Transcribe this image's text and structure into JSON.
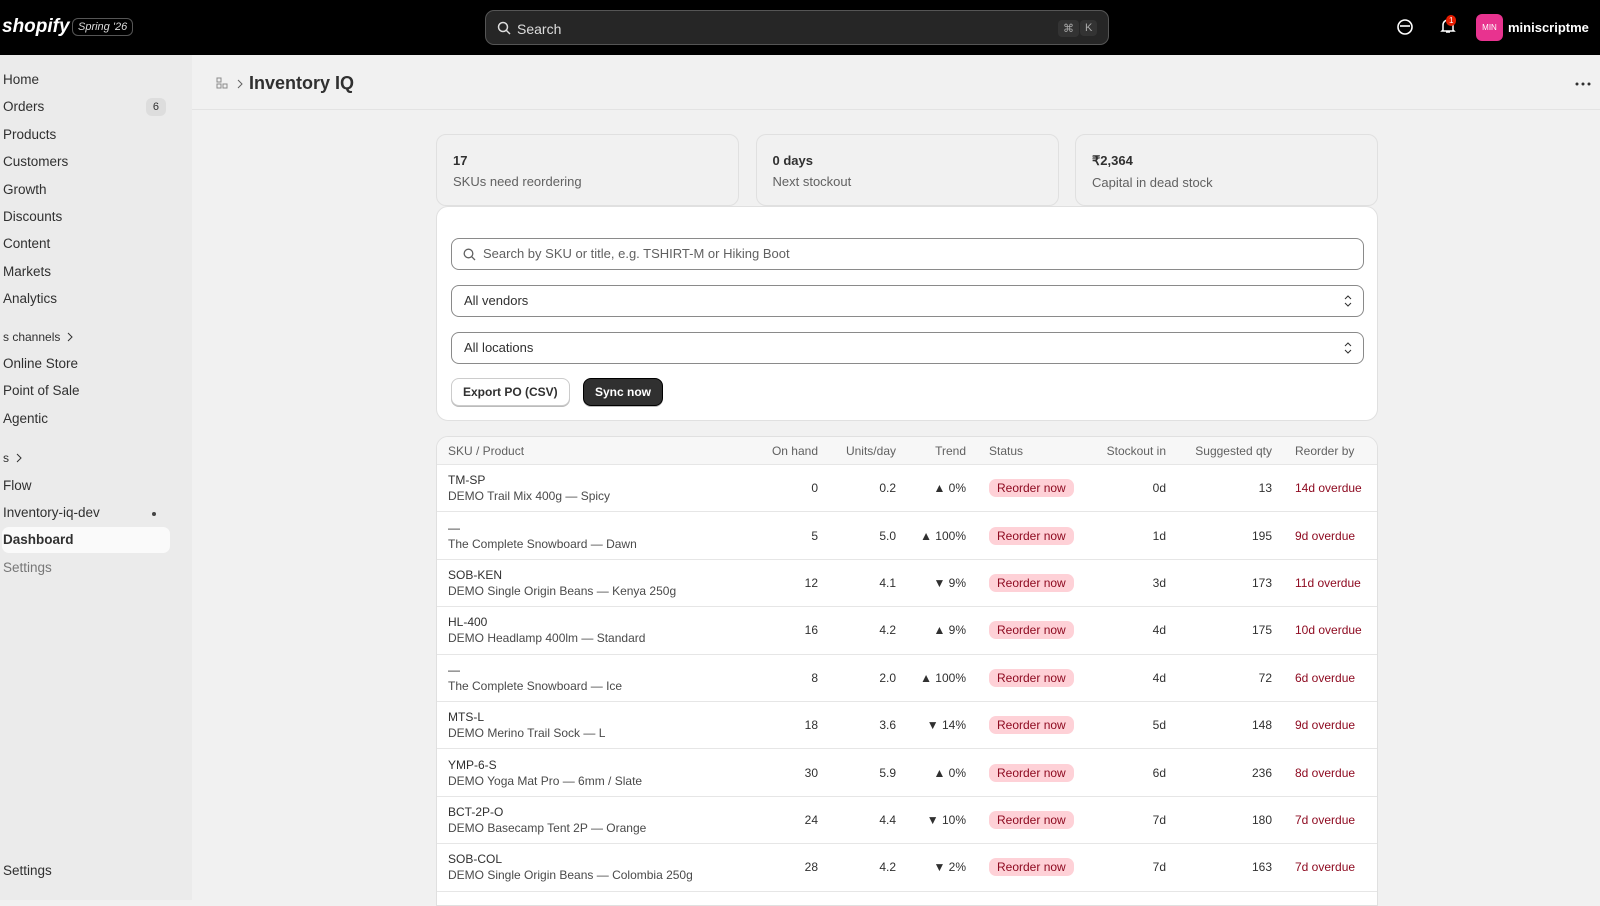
{
  "topbar": {
    "logo": "shopify",
    "badge": "Spring '26",
    "search": "Search",
    "shortcut": [
      "⌘",
      "K"
    ],
    "notifications": "1",
    "avatar": "MIN",
    "user": "miniscriptme"
  },
  "sidebar": {
    "main": [
      "Home",
      "Orders",
      "Products",
      "Customers",
      "Growth",
      "Discounts",
      "Content",
      "Markets",
      "Analytics"
    ],
    "orders_badge": "6",
    "channels_heading": "s channels",
    "channels": [
      "Online Store",
      "Point of Sale",
      "Agentic"
    ],
    "apps_heading": "s",
    "apps": [
      "Flow",
      "Inventory-iq-dev"
    ],
    "app_pages": [
      "Dashboard",
      "Settings"
    ],
    "footer": "Settings"
  },
  "header": {
    "title": "Inventory IQ"
  },
  "stats": [
    {
      "value": "17",
      "label": "SKUs need reordering"
    },
    {
      "value": "0 days",
      "label": "Next stockout"
    },
    {
      "value": "₹2,364",
      "label": "Capital in dead stock"
    }
  ],
  "filters": {
    "search_placeholder": "Search by SKU or title, e.g. TSHIRT-M or Hiking Boot",
    "vendor": "All vendors",
    "location": "All locations",
    "export": "Export PO (CSV)",
    "sync": "Sync now"
  },
  "table": {
    "columns": [
      "SKU / Product",
      "On hand",
      "Units/day",
      "Trend",
      "Status",
      "Stockout in",
      "Suggested qty",
      "Reorder by"
    ],
    "rows": [
      [
        "TM-SP",
        "DEMO Trail Mix 400g — Spicy",
        "0",
        "0.2",
        "▲ 0%",
        "Reorder now",
        "0d",
        "13",
        "14d overdue"
      ],
      [
        "—",
        "The Complete Snowboard — Dawn",
        "5",
        "5.0",
        "▲ 100%",
        "Reorder now",
        "1d",
        "195",
        "9d overdue"
      ],
      [
        "SOB-KEN",
        "DEMO Single Origin Beans — Kenya 250g",
        "12",
        "4.1",
        "▼ 9%",
        "Reorder now",
        "3d",
        "173",
        "11d overdue"
      ],
      [
        "HL-400",
        "DEMO Headlamp 400lm — Standard",
        "16",
        "4.2",
        "▲ 9%",
        "Reorder now",
        "4d",
        "175",
        "10d overdue"
      ],
      [
        "—",
        "The Complete Snowboard — Ice",
        "8",
        "2.0",
        "▲ 100%",
        "Reorder now",
        "4d",
        "72",
        "6d overdue"
      ],
      [
        "MTS-L",
        "DEMO Merino Trail Sock — L",
        "18",
        "3.6",
        "▼ 14%",
        "Reorder now",
        "5d",
        "148",
        "9d overdue"
      ],
      [
        "YMP-6-S",
        "DEMO Yoga Mat Pro — 6mm / Slate",
        "30",
        "5.9",
        "▲ 0%",
        "Reorder now",
        "6d",
        "236",
        "8d overdue"
      ],
      [
        "BCT-2P-O",
        "DEMO Basecamp Tent 2P — Orange",
        "24",
        "4.4",
        "▼ 10%",
        "Reorder now",
        "7d",
        "180",
        "7d overdue"
      ],
      [
        "SOB-COL",
        "DEMO Single Origin Beans — Colombia 250g",
        "28",
        "4.2",
        "▼ 2%",
        "Reorder now",
        "7d",
        "163",
        "7d overdue"
      ]
    ]
  }
}
